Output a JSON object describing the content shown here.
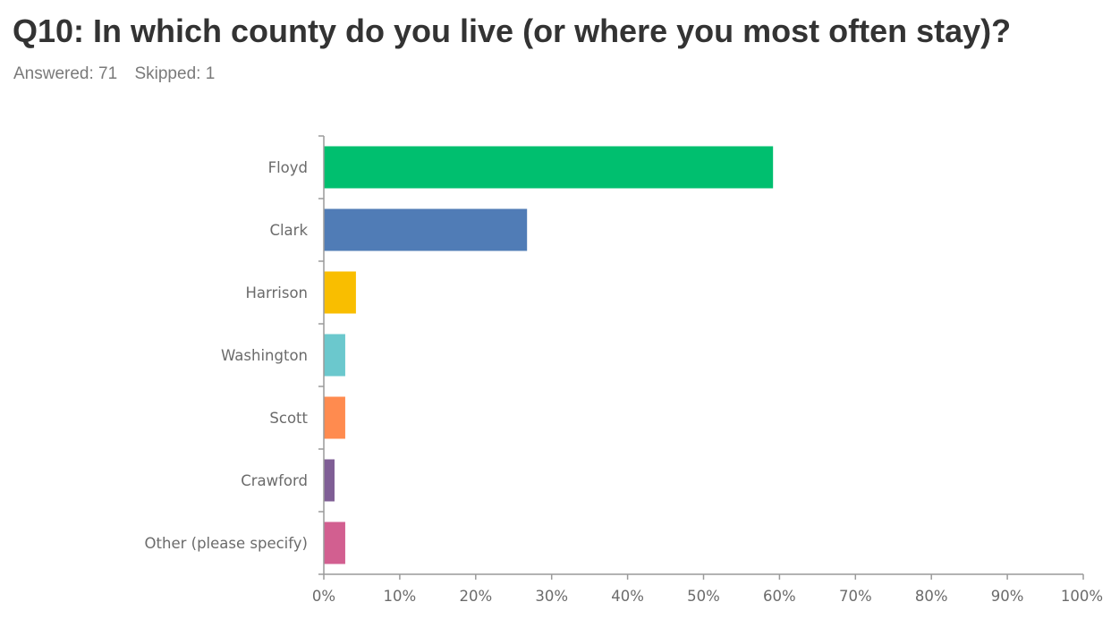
{
  "header": {
    "title": "Q10: In which county do you live (or where you most often stay)?",
    "answered": "Answered: 71",
    "skipped": "Skipped: 1"
  },
  "chart_data": {
    "type": "bar",
    "orientation": "horizontal",
    "categories": [
      "Floyd",
      "Clark",
      "Harrison",
      "Washington",
      "Scott",
      "Crawford",
      "Other (please specify)"
    ],
    "values": [
      59.15,
      26.76,
      4.23,
      2.82,
      2.82,
      1.41,
      2.82
    ],
    "colors": [
      "#00bf6f",
      "#507cb6",
      "#f9be00",
      "#6bc8cd",
      "#ff8b4f",
      "#7f5e95",
      "#d25f90"
    ],
    "xlim": [
      0,
      100
    ],
    "xticks": [
      "0%",
      "10%",
      "20%",
      "30%",
      "40%",
      "50%",
      "60%",
      "70%",
      "80%",
      "90%",
      "100%"
    ],
    "grid": false,
    "axis_color": "#9a9a9a"
  }
}
